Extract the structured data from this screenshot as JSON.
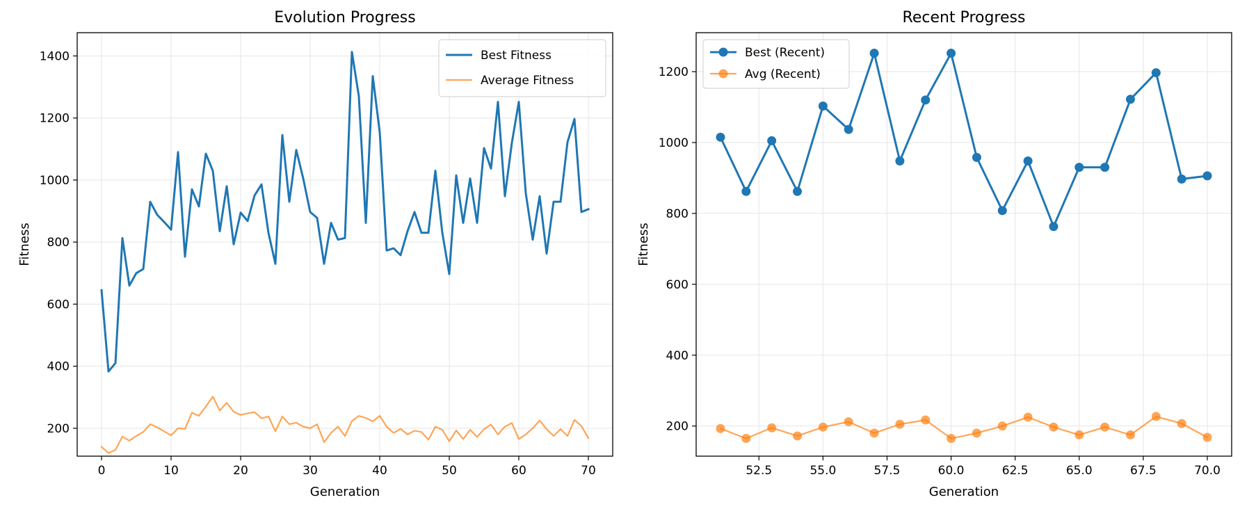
{
  "colors": {
    "best": "#1f77b4",
    "avg": "#ff7f0e",
    "grid": "#e5e5e5",
    "axis": "#000000"
  },
  "chart_data": [
    {
      "type": "line",
      "title": "Evolution Progress",
      "xlabel": "Generation",
      "ylabel": "Fitness",
      "xlim": [
        -3.5,
        73.5
      ],
      "ylim": [
        110,
        1475
      ],
      "xticks": [
        0,
        10,
        20,
        30,
        40,
        50,
        60,
        70
      ],
      "yticks": [
        200,
        400,
        600,
        800,
        1000,
        1200,
        1400
      ],
      "grid": true,
      "legend_position": "top-right",
      "markers": false,
      "x": [
        0,
        1,
        2,
        3,
        4,
        5,
        6,
        7,
        8,
        9,
        10,
        11,
        12,
        13,
        14,
        15,
        16,
        17,
        18,
        19,
        20,
        21,
        22,
        23,
        24,
        25,
        26,
        27,
        28,
        29,
        30,
        31,
        32,
        33,
        34,
        35,
        36,
        37,
        38,
        39,
        40,
        41,
        42,
        43,
        44,
        45,
        46,
        47,
        48,
        49,
        50,
        51,
        52,
        53,
        54,
        55,
        56,
        57,
        58,
        59,
        60,
        61,
        62,
        63,
        64,
        65,
        66,
        67,
        68,
        69,
        70
      ],
      "series": [
        {
          "name": "Best Fitness",
          "color_key": "best",
          "width": 3,
          "opacity": 1,
          "values": [
            645,
            383,
            410,
            813,
            660,
            700,
            713,
            930,
            888,
            865,
            840,
            1090,
            753,
            970,
            915,
            1085,
            1030,
            835,
            980,
            793,
            895,
            868,
            950,
            986,
            830,
            730,
            1145,
            930,
            1097,
            1005,
            897,
            878,
            730,
            862,
            808,
            813,
            1413,
            1270,
            862,
            1335,
            1155,
            773,
            780,
            758,
            835,
            897,
            830,
            830,
            1030,
            830,
            697,
            1015,
            862,
            1005,
            862,
            1103,
            1037,
            1252,
            948,
            1120,
            1252,
            958,
            808,
            948,
            763,
            930,
            930,
            1122,
            1197,
            897,
            906
          ]
        },
        {
          "name": "Average Fitness",
          "color_key": "avg",
          "width": 2.2,
          "opacity": 0.7,
          "values": [
            140,
            120,
            130,
            173,
            160,
            175,
            188,
            213,
            203,
            190,
            177,
            200,
            198,
            250,
            240,
            270,
            302,
            257,
            282,
            253,
            243,
            248,
            252,
            232,
            238,
            190,
            238,
            213,
            218,
            205,
            200,
            213,
            155,
            185,
            205,
            175,
            223,
            240,
            233,
            222,
            240,
            205,
            185,
            198,
            180,
            192,
            188,
            163,
            205,
            195,
            158,
            193,
            165,
            195,
            172,
            197,
            212,
            180,
            205,
            217,
            165,
            180,
            200,
            225,
            197,
            175,
            197,
            175,
            227,
            207,
            168
          ]
        }
      ]
    },
    {
      "type": "line",
      "title": "Recent Progress",
      "xlabel": "Generation",
      "ylabel": "Fitness",
      "xlim": [
        50.05,
        70.95
      ],
      "ylim": [
        115,
        1310
      ],
      "xticks": [
        52.5,
        55.0,
        57.5,
        60.0,
        62.5,
        65.0,
        67.5,
        70.0
      ],
      "xtick_labels": [
        "52.5",
        "55.0",
        "57.5",
        "60.0",
        "62.5",
        "65.0",
        "67.5",
        "70.0"
      ],
      "yticks": [
        200,
        400,
        600,
        800,
        1000,
        1200
      ],
      "grid": true,
      "legend_position": "top-left",
      "markers": true,
      "x": [
        51,
        52,
        53,
        54,
        55,
        56,
        57,
        58,
        59,
        60,
        61,
        62,
        63,
        64,
        65,
        66,
        67,
        68,
        69,
        70
      ],
      "series": [
        {
          "name": "Best (Recent)",
          "color_key": "best",
          "width": 3,
          "opacity": 1,
          "values": [
            1015,
            862,
            1005,
            862,
            1103,
            1037,
            1252,
            948,
            1120,
            1252,
            958,
            808,
            948,
            763,
            930,
            930,
            1122,
            1197,
            897,
            906
          ]
        },
        {
          "name": "Avg (Recent)",
          "color_key": "avg",
          "width": 2.2,
          "opacity": 0.7,
          "values": [
            193,
            165,
            195,
            172,
            197,
            212,
            180,
            205,
            217,
            165,
            180,
            200,
            225,
            197,
            175,
            197,
            175,
            227,
            207,
            168
          ]
        }
      ]
    }
  ]
}
